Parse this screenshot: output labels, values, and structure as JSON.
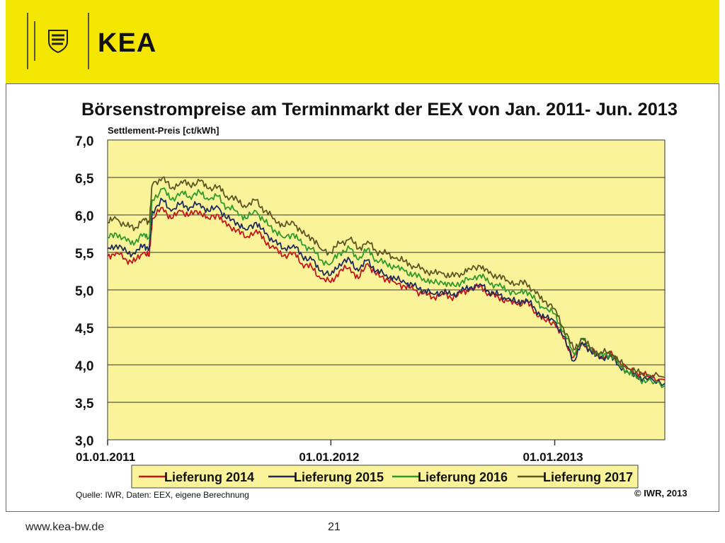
{
  "header": {
    "brand": "KEA",
    "logo_icon": "coat-of-arms-icon",
    "background": "#f5e600"
  },
  "footer": {
    "url": "www.kea-bw.de",
    "page_number": "21"
  },
  "chart_data": {
    "type": "line",
    "title": "Börsenstrompreise am Terminmarkt der EEX von Jan. 2011- Jun. 2013",
    "ylabel": "Settlement-Preis  [ct/kWh]",
    "xlabel": "",
    "ylim": [
      3.0,
      7.0
    ],
    "yticks": [
      "7,0",
      "6,5",
      "6,0",
      "5,5",
      "5,0",
      "4,5",
      "4,0",
      "3,5",
      "3,0"
    ],
    "xlim": [
      "2011-01-01",
      "2013-06-30"
    ],
    "xticks": [
      {
        "date": "2011-01-01",
        "label": "01.01.2011"
      },
      {
        "date": "2012-01-01",
        "label": "01.01.2012"
      },
      {
        "date": "2013-01-01",
        "label": "01.01.2013"
      }
    ],
    "grid": "horizontal",
    "plot_background": "#faf39a",
    "legend_position": "bottom",
    "source": "Quelle:  IWR, Daten: EEX, eigene Berechnung",
    "copyright": "© IWR, 2013",
    "series": [
      {
        "name": "Lieferung 2014",
        "color": "#c0161c",
        "points": [
          [
            "2011-01-01",
            5.45
          ],
          [
            "2011-01-15",
            5.5
          ],
          [
            "2011-02-01",
            5.4
          ],
          [
            "2011-02-15",
            5.38
          ],
          [
            "2011-03-01",
            5.5
          ],
          [
            "2011-03-10",
            5.45
          ],
          [
            "2011-03-15",
            5.95
          ],
          [
            "2011-04-01",
            6.1
          ],
          [
            "2011-04-15",
            5.95
          ],
          [
            "2011-05-01",
            6.05
          ],
          [
            "2011-05-15",
            6.0
          ],
          [
            "2011-06-01",
            6.05
          ],
          [
            "2011-06-15",
            5.95
          ],
          [
            "2011-07-01",
            6.0
          ],
          [
            "2011-07-15",
            5.85
          ],
          [
            "2011-08-01",
            5.8
          ],
          [
            "2011-08-15",
            5.7
          ],
          [
            "2011-09-01",
            5.8
          ],
          [
            "2011-09-15",
            5.65
          ],
          [
            "2011-10-01",
            5.55
          ],
          [
            "2011-10-15",
            5.45
          ],
          [
            "2011-11-01",
            5.5
          ],
          [
            "2011-11-15",
            5.35
          ],
          [
            "2011-12-01",
            5.3
          ],
          [
            "2011-12-15",
            5.15
          ],
          [
            "2012-01-01",
            5.1
          ],
          [
            "2012-01-15",
            5.25
          ],
          [
            "2012-02-01",
            5.3
          ],
          [
            "2012-02-15",
            5.15
          ],
          [
            "2012-03-01",
            5.35
          ],
          [
            "2012-03-15",
            5.2
          ],
          [
            "2012-04-01",
            5.15
          ],
          [
            "2012-04-15",
            5.1
          ],
          [
            "2012-05-01",
            5.05
          ],
          [
            "2012-05-15",
            5.0
          ],
          [
            "2012-06-01",
            4.95
          ],
          [
            "2012-06-15",
            4.9
          ],
          [
            "2012-07-01",
            4.95
          ],
          [
            "2012-07-15",
            4.9
          ],
          [
            "2012-08-01",
            4.95
          ],
          [
            "2012-08-15",
            5.0
          ],
          [
            "2012-09-01",
            5.05
          ],
          [
            "2012-09-15",
            4.95
          ],
          [
            "2012-10-01",
            4.9
          ],
          [
            "2012-10-15",
            4.85
          ],
          [
            "2012-11-01",
            4.8
          ],
          [
            "2012-11-15",
            4.85
          ],
          [
            "2012-12-01",
            4.7
          ],
          [
            "2012-12-15",
            4.6
          ],
          [
            "2013-01-01",
            4.55
          ],
          [
            "2013-01-15",
            4.35
          ],
          [
            "2013-02-01",
            4.1
          ],
          [
            "2013-02-15",
            4.3
          ],
          [
            "2013-03-01",
            4.2
          ],
          [
            "2013-03-15",
            4.1
          ],
          [
            "2013-04-01",
            4.15
          ],
          [
            "2013-04-15",
            4.05
          ],
          [
            "2013-05-01",
            3.95
          ],
          [
            "2013-05-15",
            3.9
          ],
          [
            "2013-06-01",
            3.85
          ],
          [
            "2013-06-30",
            3.8
          ]
        ]
      },
      {
        "name": "Lieferung 2015",
        "color": "#1f2a5c",
        "points": [
          [
            "2011-01-01",
            5.55
          ],
          [
            "2011-01-15",
            5.6
          ],
          [
            "2011-02-01",
            5.5
          ],
          [
            "2011-02-15",
            5.48
          ],
          [
            "2011-03-01",
            5.6
          ],
          [
            "2011-03-10",
            5.55
          ],
          [
            "2011-03-15",
            6.05
          ],
          [
            "2011-04-01",
            6.2
          ],
          [
            "2011-04-15",
            6.05
          ],
          [
            "2011-05-01",
            6.15
          ],
          [
            "2011-05-15",
            6.1
          ],
          [
            "2011-06-01",
            6.15
          ],
          [
            "2011-06-15",
            6.05
          ],
          [
            "2011-07-01",
            6.1
          ],
          [
            "2011-07-15",
            5.95
          ],
          [
            "2011-08-01",
            5.9
          ],
          [
            "2011-08-15",
            5.8
          ],
          [
            "2011-09-01",
            5.9
          ],
          [
            "2011-09-15",
            5.75
          ],
          [
            "2011-10-01",
            5.65
          ],
          [
            "2011-10-15",
            5.55
          ],
          [
            "2011-11-01",
            5.6
          ],
          [
            "2011-11-15",
            5.45
          ],
          [
            "2011-12-01",
            5.4
          ],
          [
            "2011-12-15",
            5.25
          ],
          [
            "2012-01-01",
            5.2
          ],
          [
            "2012-01-15",
            5.35
          ],
          [
            "2012-02-01",
            5.4
          ],
          [
            "2012-02-15",
            5.25
          ],
          [
            "2012-03-01",
            5.4
          ],
          [
            "2012-03-15",
            5.25
          ],
          [
            "2012-04-01",
            5.2
          ],
          [
            "2012-04-15",
            5.15
          ],
          [
            "2012-05-01",
            5.1
          ],
          [
            "2012-05-15",
            5.05
          ],
          [
            "2012-06-01",
            5.0
          ],
          [
            "2012-06-15",
            4.95
          ],
          [
            "2012-07-01",
            4.98
          ],
          [
            "2012-07-15",
            4.93
          ],
          [
            "2012-08-01",
            4.98
          ],
          [
            "2012-08-15",
            5.03
          ],
          [
            "2012-09-01",
            5.08
          ],
          [
            "2012-09-15",
            4.98
          ],
          [
            "2012-10-01",
            4.93
          ],
          [
            "2012-10-15",
            4.88
          ],
          [
            "2012-11-01",
            4.83
          ],
          [
            "2012-11-15",
            4.88
          ],
          [
            "2012-12-01",
            4.73
          ],
          [
            "2012-12-15",
            4.63
          ],
          [
            "2013-01-01",
            4.58
          ],
          [
            "2013-01-15",
            4.38
          ],
          [
            "2013-02-01",
            4.05
          ],
          [
            "2013-02-15",
            4.3
          ],
          [
            "2013-03-01",
            4.18
          ],
          [
            "2013-03-15",
            4.08
          ],
          [
            "2013-04-01",
            4.12
          ],
          [
            "2013-04-15",
            4.0
          ],
          [
            "2013-05-01",
            3.9
          ],
          [
            "2013-05-15",
            3.85
          ],
          [
            "2013-06-01",
            3.8
          ],
          [
            "2013-06-30",
            3.75
          ]
        ]
      },
      {
        "name": "Lieferung 2016",
        "color": "#2f9a2c",
        "points": [
          [
            "2011-01-01",
            5.7
          ],
          [
            "2011-01-15",
            5.75
          ],
          [
            "2011-02-01",
            5.65
          ],
          [
            "2011-02-15",
            5.63
          ],
          [
            "2011-03-01",
            5.75
          ],
          [
            "2011-03-10",
            5.7
          ],
          [
            "2011-03-15",
            6.2
          ],
          [
            "2011-04-01",
            6.35
          ],
          [
            "2011-04-15",
            6.2
          ],
          [
            "2011-05-01",
            6.3
          ],
          [
            "2011-05-15",
            6.25
          ],
          [
            "2011-06-01",
            6.3
          ],
          [
            "2011-06-15",
            6.2
          ],
          [
            "2011-07-01",
            6.25
          ],
          [
            "2011-07-15",
            6.1
          ],
          [
            "2011-08-01",
            6.05
          ],
          [
            "2011-08-15",
            5.95
          ],
          [
            "2011-09-01",
            6.05
          ],
          [
            "2011-09-15",
            5.9
          ],
          [
            "2011-10-01",
            5.8
          ],
          [
            "2011-10-15",
            5.7
          ],
          [
            "2011-11-01",
            5.75
          ],
          [
            "2011-11-15",
            5.6
          ],
          [
            "2011-12-01",
            5.55
          ],
          [
            "2011-12-15",
            5.4
          ],
          [
            "2012-01-01",
            5.35
          ],
          [
            "2012-01-15",
            5.5
          ],
          [
            "2012-02-01",
            5.55
          ],
          [
            "2012-02-15",
            5.4
          ],
          [
            "2012-03-01",
            5.55
          ],
          [
            "2012-03-15",
            5.4
          ],
          [
            "2012-04-01",
            5.35
          ],
          [
            "2012-04-15",
            5.3
          ],
          [
            "2012-05-01",
            5.25
          ],
          [
            "2012-05-15",
            5.2
          ],
          [
            "2012-06-01",
            5.15
          ],
          [
            "2012-06-15",
            5.1
          ],
          [
            "2012-07-01",
            5.1
          ],
          [
            "2012-07-15",
            5.05
          ],
          [
            "2012-08-01",
            5.1
          ],
          [
            "2012-08-15",
            5.15
          ],
          [
            "2012-09-01",
            5.2
          ],
          [
            "2012-09-15",
            5.1
          ],
          [
            "2012-10-01",
            5.05
          ],
          [
            "2012-10-15",
            5.0
          ],
          [
            "2012-11-01",
            4.95
          ],
          [
            "2012-11-15",
            5.0
          ],
          [
            "2012-12-01",
            4.85
          ],
          [
            "2012-12-15",
            4.75
          ],
          [
            "2013-01-01",
            4.68
          ],
          [
            "2013-01-15",
            4.45
          ],
          [
            "2013-02-01",
            4.15
          ],
          [
            "2013-02-15",
            4.35
          ],
          [
            "2013-03-01",
            4.2
          ],
          [
            "2013-03-15",
            4.12
          ],
          [
            "2013-04-01",
            4.15
          ],
          [
            "2013-04-15",
            4.02
          ],
          [
            "2013-05-01",
            3.9
          ],
          [
            "2013-05-15",
            3.82
          ],
          [
            "2013-06-01",
            3.78
          ],
          [
            "2013-06-30",
            3.72
          ]
        ]
      },
      {
        "name": "Lieferung 2017",
        "color": "#5c5626",
        "points": [
          [
            "2011-01-01",
            5.9
          ],
          [
            "2011-01-15",
            5.95
          ],
          [
            "2011-02-01",
            5.85
          ],
          [
            "2011-02-15",
            5.83
          ],
          [
            "2011-03-01",
            5.95
          ],
          [
            "2011-03-10",
            5.9
          ],
          [
            "2011-03-15",
            6.4
          ],
          [
            "2011-04-01",
            6.5
          ],
          [
            "2011-04-15",
            6.35
          ],
          [
            "2011-05-01",
            6.45
          ],
          [
            "2011-05-15",
            6.4
          ],
          [
            "2011-06-01",
            6.45
          ],
          [
            "2011-06-15",
            6.35
          ],
          [
            "2011-07-01",
            6.38
          ],
          [
            "2011-07-15",
            6.25
          ],
          [
            "2011-08-01",
            6.2
          ],
          [
            "2011-08-15",
            6.1
          ],
          [
            "2011-09-01",
            6.2
          ],
          [
            "2011-09-15",
            6.05
          ],
          [
            "2011-10-01",
            5.95
          ],
          [
            "2011-10-15",
            5.85
          ],
          [
            "2011-11-01",
            5.9
          ],
          [
            "2011-11-15",
            5.75
          ],
          [
            "2011-12-01",
            5.7
          ],
          [
            "2011-12-15",
            5.55
          ],
          [
            "2012-01-01",
            5.5
          ],
          [
            "2012-01-15",
            5.62
          ],
          [
            "2012-02-01",
            5.68
          ],
          [
            "2012-02-15",
            5.55
          ],
          [
            "2012-03-01",
            5.65
          ],
          [
            "2012-03-15",
            5.52
          ],
          [
            "2012-04-01",
            5.48
          ],
          [
            "2012-04-15",
            5.42
          ],
          [
            "2012-05-01",
            5.38
          ],
          [
            "2012-05-15",
            5.32
          ],
          [
            "2012-06-01",
            5.27
          ],
          [
            "2012-06-15",
            5.22
          ],
          [
            "2012-07-01",
            5.22
          ],
          [
            "2012-07-15",
            5.18
          ],
          [
            "2012-08-01",
            5.22
          ],
          [
            "2012-08-15",
            5.28
          ],
          [
            "2012-09-01",
            5.32
          ],
          [
            "2012-09-15",
            5.22
          ],
          [
            "2012-10-01",
            5.18
          ],
          [
            "2012-10-15",
            5.13
          ],
          [
            "2012-11-01",
            5.08
          ],
          [
            "2012-11-15",
            5.1
          ],
          [
            "2012-12-01",
            4.95
          ],
          [
            "2012-12-15",
            4.85
          ],
          [
            "2013-01-01",
            4.75
          ],
          [
            "2013-01-15",
            4.5
          ],
          [
            "2013-02-01",
            4.2
          ],
          [
            "2013-02-15",
            4.35
          ],
          [
            "2013-03-01",
            4.22
          ],
          [
            "2013-03-15",
            4.15
          ],
          [
            "2013-04-01",
            4.18
          ],
          [
            "2013-04-15",
            4.05
          ],
          [
            "2013-05-01",
            3.95
          ],
          [
            "2013-05-15",
            3.9
          ],
          [
            "2013-06-01",
            3.87
          ],
          [
            "2013-06-30",
            3.83
          ]
        ]
      }
    ]
  }
}
